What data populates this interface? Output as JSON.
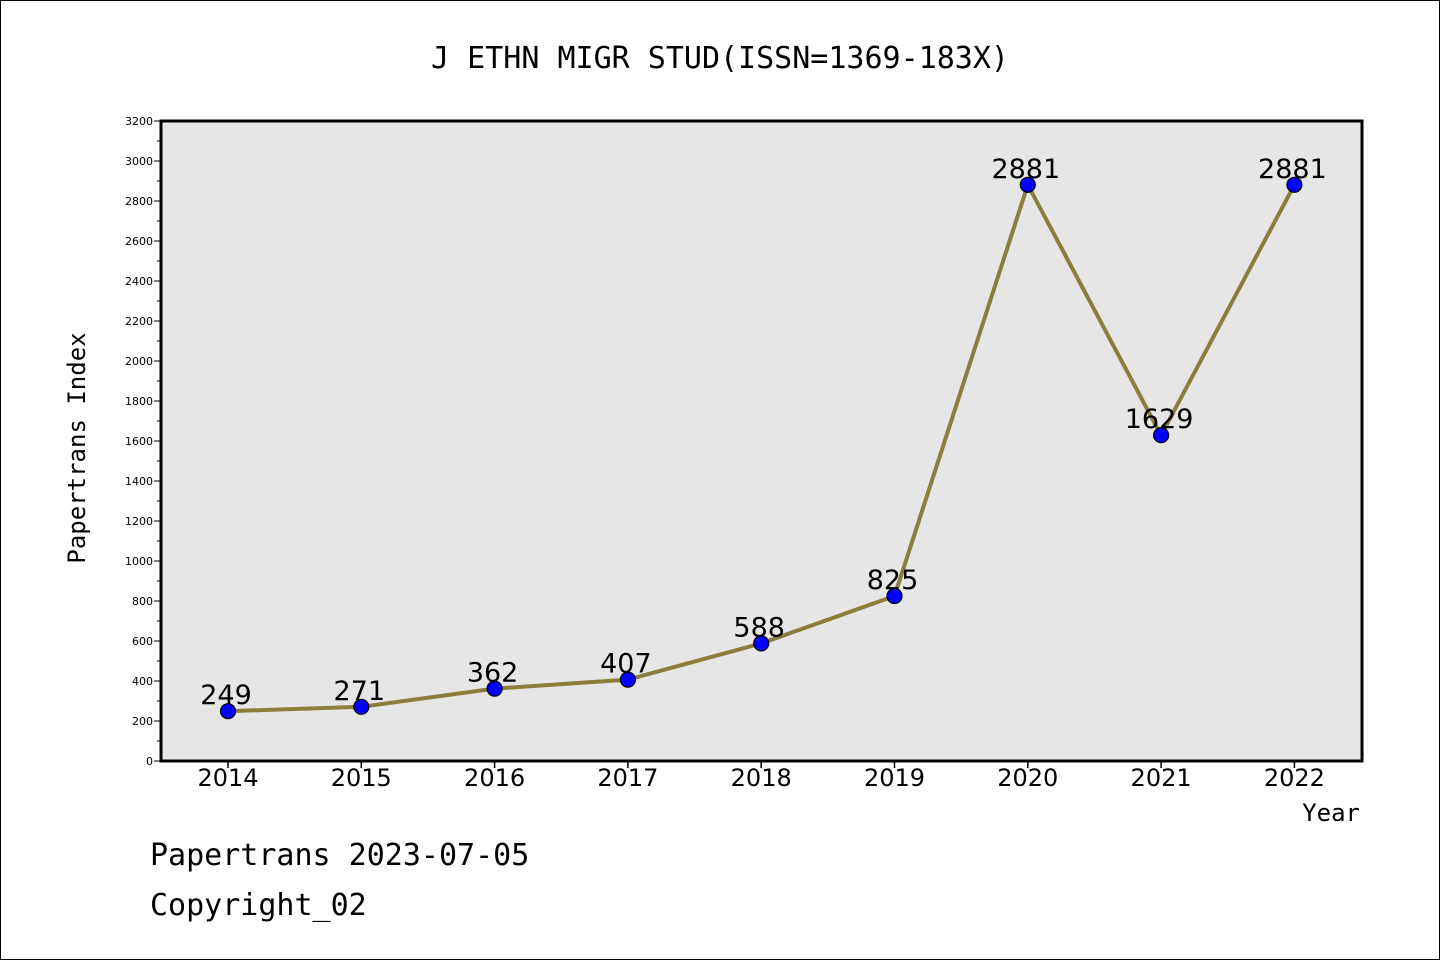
{
  "chart_data": {
    "type": "line",
    "title": "J ETHN MIGR STUD(ISSN=1369-183X)",
    "xlabel": "Year",
    "ylabel": "Papertrans Index",
    "categories": [
      "2014",
      "2015",
      "2016",
      "2017",
      "2018",
      "2019",
      "2020",
      "2021",
      "2022"
    ],
    "values": [
      249,
      271,
      362,
      407,
      588,
      825,
      2881,
      1629,
      2881
    ],
    "data_labels": [
      "249",
      "271",
      "362",
      "407",
      "588",
      "825",
      "2881",
      "1629",
      "2881"
    ],
    "ylim": [
      0,
      3200
    ],
    "yticks": [
      "0",
      "200",
      "400",
      "600",
      "800",
      "1000",
      "1200",
      "1400",
      "1600",
      "1800",
      "2000",
      "2200",
      "2400",
      "2600",
      "2800",
      "3000",
      "3200"
    ],
    "grid": false,
    "colors": {
      "line": "#8B7D3A",
      "marker": "#0000FF",
      "plot_background": "#E6E6E6"
    }
  },
  "footer": {
    "date_text": "Papertrans 2023-07-05",
    "copyright_text": "Copyright_02"
  }
}
